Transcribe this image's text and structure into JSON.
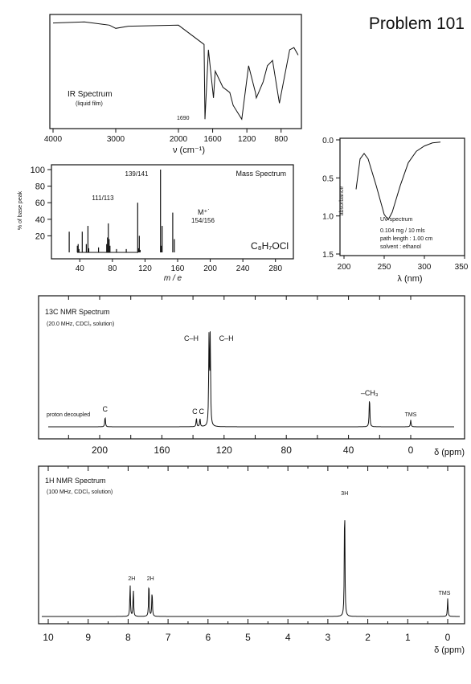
{
  "problem_title": "Problem 101",
  "chart_data": [
    {
      "type": "line",
      "title": "IR Spectrum",
      "subtitle": "(liquid film)",
      "xlabel": "ν (cm⁻¹)",
      "xlim": [
        4000,
        600
      ],
      "x_ticks": [
        "4000",
        "3000",
        "2000",
        "1600",
        "1200",
        "800"
      ],
      "annotations": [
        "1690"
      ],
      "series": [
        {
          "x": [
            4000,
            3500,
            3100,
            3000,
            2800,
            2000,
            1700,
            1690,
            1650,
            1590,
            1570,
            1480,
            1400,
            1360,
            1260,
            1180,
            1100,
            1090,
            1010,
            960,
            900,
            820,
            700,
            650,
            600
          ],
          "y": [
            95,
            96,
            93,
            90,
            92,
            93,
            75,
            5,
            70,
            25,
            50,
            35,
            30,
            18,
            5,
            55,
            30,
            25,
            40,
            55,
            60,
            20,
            70,
            72,
            65
          ]
        }
      ]
    },
    {
      "type": "bar",
      "title": "Mass Spectrum",
      "xlabel": "m / e",
      "ylabel": "% of base peak",
      "xlim": [
        0,
        300
      ],
      "ylim": [
        0,
        100
      ],
      "x_ticks": [
        "40",
        "80",
        "120",
        "160",
        "200",
        "240",
        "280"
      ],
      "y_ticks": [
        "20",
        "40",
        "60",
        "80",
        "100"
      ],
      "formula": "C₈H₇OCl",
      "peak_labels": [
        "139/141",
        "111/113",
        "M⁺˙",
        "154/156"
      ],
      "x": [
        27,
        37,
        38,
        39,
        43,
        48,
        50,
        51,
        63,
        73,
        74,
        75,
        76,
        77,
        85,
        97,
        111,
        112,
        113,
        114,
        139,
        140,
        141,
        154,
        156
      ],
      "values": [
        25,
        8,
        10,
        4,
        25,
        10,
        32,
        5,
        6,
        10,
        18,
        35,
        16,
        8,
        4,
        4,
        60,
        5,
        20,
        3,
        100,
        8,
        32,
        48,
        16
      ]
    },
    {
      "type": "line",
      "title": "UV spectrum",
      "ylabel": "absorbance",
      "xlabel": "λ (nm)",
      "xlim": [
        190,
        350
      ],
      "ylim": [
        1.5,
        0.0
      ],
      "x_ticks": [
        "200",
        "250",
        "300",
        "350"
      ],
      "y_ticks": [
        "0.0",
        "0.5",
        "1.0",
        "1.5"
      ],
      "conditions": [
        "0.104 mg / 10 mls",
        "path length : 1.00 cm",
        "solvent : ethanol"
      ],
      "series": [
        {
          "x": [
            215,
            220,
            225,
            230,
            240,
            250,
            255,
            260,
            270,
            280,
            290,
            300,
            310,
            320
          ],
          "y": [
            0.65,
            0.25,
            0.18,
            0.25,
            0.6,
            0.98,
            1.05,
            0.95,
            0.6,
            0.3,
            0.15,
            0.08,
            0.04,
            0.03
          ]
        }
      ]
    },
    {
      "type": "line",
      "title": "13C NMR Spectrum",
      "subtitle": "(20.0 MHz, CDCl₃ solution)",
      "xlabel": "δ (ppm)",
      "xlim": [
        225,
        -5
      ],
      "x_ticks": [
        "200",
        "160",
        "120",
        "80",
        "40",
        "0"
      ],
      "note": "proton decoupled",
      "peaks": [
        {
          "x": 196.5,
          "h": 0.12,
          "label": "C"
        },
        {
          "x": 137.8,
          "h": 0.1,
          "label": "C"
        },
        {
          "x": 135.5,
          "h": 0.1,
          "label": "C"
        },
        {
          "x": 129.7,
          "h": 1.0,
          "label": "C–H"
        },
        {
          "x": 128.9,
          "h": 1.02,
          "label": "C–H"
        },
        {
          "x": 26.5,
          "h": 0.35,
          "label": "–CH₃"
        },
        {
          "x": 0,
          "h": 0.08,
          "label": "TMS"
        }
      ]
    },
    {
      "type": "line",
      "title": "1H NMR Spectrum",
      "subtitle": "(100 MHz, CDCl₃ solution)",
      "xlabel": "δ (ppm)",
      "xlim": [
        10.2,
        -0.2
      ],
      "x_ticks": [
        "10",
        "9",
        "8",
        "7",
        "6",
        "5",
        "4",
        "3",
        "2",
        "1",
        "0"
      ],
      "peaks": [
        {
          "x": 7.95,
          "h": 0.27
        },
        {
          "x": 7.87,
          "h": 0.23
        },
        {
          "x": 7.48,
          "h": 0.3
        },
        {
          "x": 7.4,
          "h": 0.22
        },
        {
          "x": 2.58,
          "h": 1.0
        },
        {
          "x": 0.0,
          "h": 0.15
        }
      ],
      "integrations": [
        {
          "x": 7.91,
          "label": "2H"
        },
        {
          "x": 7.44,
          "label": "2H"
        },
        {
          "x": 2.58,
          "label": "3H"
        },
        {
          "x": 0.0,
          "label": "TMS"
        }
      ]
    }
  ]
}
